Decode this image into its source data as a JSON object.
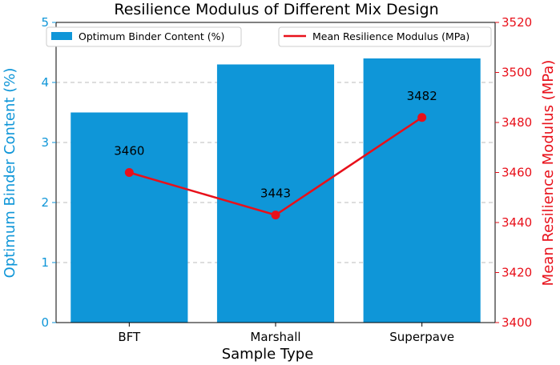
{
  "chart_data": {
    "type": "bar+line",
    "title": "Resilience Modulus of Different Mix Design",
    "xlabel": "Sample Type",
    "categories": [
      "BFT",
      "Marshall",
      "Superpave"
    ],
    "bar_series": {
      "name": "Optimum Binder Content (%)",
      "values": [
        3.5,
        4.3,
        4.4
      ],
      "color": "#0f96d8"
    },
    "line_series": {
      "name": "Mean Resilience Modulus (MPa)",
      "values": [
        3460,
        3443,
        3482
      ],
      "labels": [
        "3460",
        "3443",
        "3482"
      ],
      "color": "#e8101a"
    },
    "y_left": {
      "label": "Optimum Binder Content (%)",
      "ylim": [
        0,
        5
      ],
      "ticks": [
        "0",
        "1",
        "2",
        "3",
        "4",
        "5"
      ],
      "color": "#0f96d8"
    },
    "y_right": {
      "label": "Mean Resilience Modulus (MPa)",
      "ylim": [
        3400,
        3520
      ],
      "ticks": [
        "3400",
        "3420",
        "3440",
        "3460",
        "3480",
        "3500",
        "3520"
      ],
      "color": "#e8101a"
    },
    "grid": "horizontal dashed",
    "legend": [
      "top-left",
      "top-right"
    ]
  }
}
